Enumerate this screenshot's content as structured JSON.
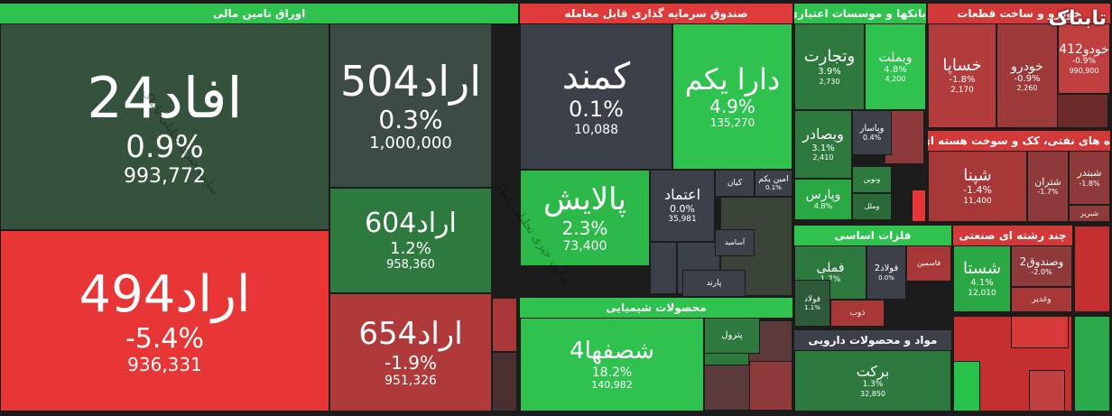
{
  "logo": "تابناک",
  "watermark": "سایت خبری تحلیلی تابناک",
  "sectors": [
    {
      "title": "اوراق تامین مالی",
      "tiles": [
        {
          "name": "افاد24",
          "change": "0.9%",
          "volume": "993,772"
        },
        {
          "name": "اراد494",
          "change": "-5.4%",
          "volume": "936,331"
        },
        {
          "name": "اراد504",
          "change": "0.3%",
          "volume": "1,000,000"
        },
        {
          "name": "اراد604",
          "change": "1.2%",
          "volume": "958,360"
        },
        {
          "name": "اراد654",
          "change": "-1.9%",
          "volume": "951,326"
        }
      ]
    },
    {
      "title": "صندوق سرمایه گذاری قابل معامله",
      "tiles": [
        {
          "name": "کمند",
          "change": "0.1%",
          "volume": "10,088"
        },
        {
          "name": "دارا یکم",
          "change": "4.9%",
          "volume": "135,270"
        },
        {
          "name": "پالایش",
          "change": "2.3%",
          "volume": "73,400"
        },
        {
          "name": "اعتماد",
          "change": "0.0%",
          "volume": "35,981"
        },
        {
          "name": "کیان"
        },
        {
          "name": "امین یکم",
          "change": "0.1%"
        },
        {
          "name": "آسامید"
        },
        {
          "name": "پارند"
        }
      ]
    },
    {
      "title": "محصولات شیمیایی",
      "tiles": [
        {
          "name": "شصفها4",
          "change": "18.2%",
          "volume": "140,982"
        },
        {
          "name": "پترول"
        }
      ]
    },
    {
      "title": "بانکها و موسسات اعتباری",
      "tiles": [
        {
          "name": "وتجارت",
          "change": "3.9%",
          "volume": "2,730"
        },
        {
          "name": "وبملت",
          "change": "4.8%",
          "volume": "4,200"
        },
        {
          "name": "وبصادر",
          "change": "3.1%",
          "volume": "2,410"
        },
        {
          "name": "وپاسار",
          "change": "0.4%"
        },
        {
          "name": "وپارس",
          "change": "4.8%"
        },
        {
          "name": "ونوین"
        },
        {
          "name": "وملل"
        }
      ]
    },
    {
      "title": "خودرو و ساخت قطعات",
      "tiles": [
        {
          "name": "خساپا",
          "change": "-1.8%",
          "volume": "2,170"
        },
        {
          "name": "خودرو",
          "change": "-0.9%",
          "volume": "2,260"
        },
        {
          "name": "خودو412",
          "change": "-0.9%",
          "volume": "990,900"
        }
      ]
    },
    {
      "title": "ه های نفتی، کک و سوخت هسته ای",
      "tiles": [
        {
          "name": "شپنا",
          "change": "-1.4%",
          "volume": "11,400"
        },
        {
          "name": "شتران",
          "change": "-1.7%"
        },
        {
          "name": "شبندر",
          "change": "-1.8%"
        },
        {
          "name": "شبریز"
        }
      ]
    },
    {
      "title": "فلزات اساسی",
      "tiles": [
        {
          "name": "فملی",
          "change": "1.7%"
        },
        {
          "name": "فولاد2",
          "change": "0.0%"
        },
        {
          "name": "فولاد",
          "change": "1.1%"
        },
        {
          "name": "فاسمین"
        },
        {
          "name": "ذوب"
        }
      ]
    },
    {
      "title": "مواد و محصولات دارویی",
      "tiles": [
        {
          "name": "برکت",
          "change": "1.3%",
          "volume": "32,850"
        }
      ]
    },
    {
      "title": "چند رشته ای صنعتی",
      "tiles": [
        {
          "name": "شستا",
          "change": "4.1%",
          "volume": "12,010"
        },
        {
          "name": "وصندوق2",
          "change": "-2.0%"
        },
        {
          "name": "وغدیر"
        }
      ]
    }
  ]
}
